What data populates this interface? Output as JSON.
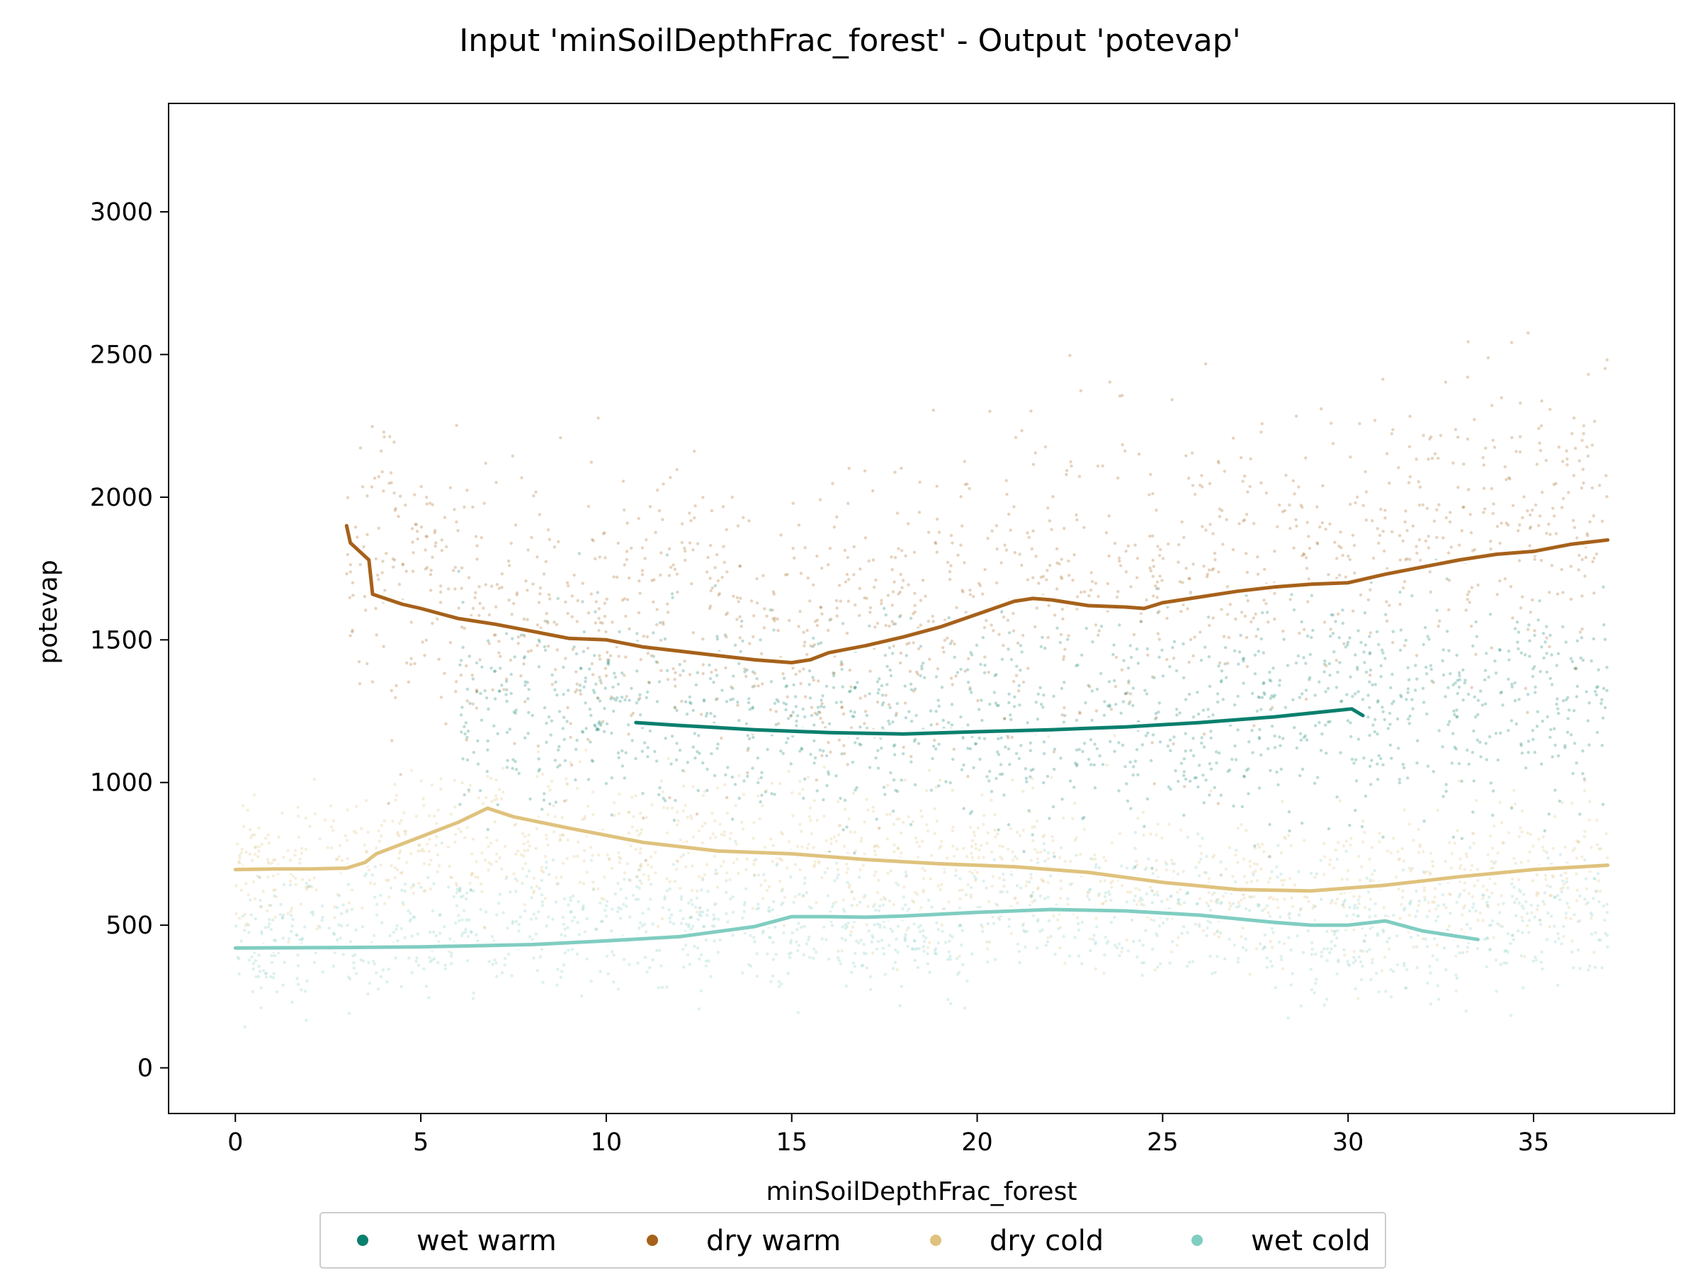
{
  "chart_data": {
    "type": "scatter",
    "title": "Input 'minSoilDepthFrac_forest' - Output 'potevap'",
    "xlabel": "minSoilDepthFrac_forest",
    "ylabel": "potevap",
    "xlim": [
      -1.8,
      38.8
    ],
    "ylim": [
      -160,
      3380
    ],
    "xticks": [
      0,
      5,
      10,
      15,
      20,
      25,
      30,
      35
    ],
    "yticks": [
      0,
      500,
      1000,
      1500,
      2000,
      2500,
      3000
    ],
    "grid": false,
    "legend_position": "bottom-center",
    "series": [
      {
        "name": "wet warm",
        "color": "#0a7f6d",
        "trend": [
          [
            10.8,
            1210
          ],
          [
            12,
            1200
          ],
          [
            14,
            1185
          ],
          [
            16,
            1175
          ],
          [
            18,
            1170
          ],
          [
            20,
            1178
          ],
          [
            22,
            1185
          ],
          [
            24,
            1195
          ],
          [
            26,
            1210
          ],
          [
            28,
            1230
          ],
          [
            29.5,
            1250
          ],
          [
            30.1,
            1258
          ],
          [
            30.4,
            1235
          ]
        ],
        "scatter_center": [
          [
            6,
            1250
          ],
          [
            10,
            1250
          ],
          [
            14,
            1200
          ],
          [
            18,
            1180
          ],
          [
            22,
            1200
          ],
          [
            26,
            1230
          ],
          [
            30,
            1280
          ],
          [
            33,
            1280
          ],
          [
            37,
            1300
          ]
        ],
        "scatter_spread": 300
      },
      {
        "name": "dry warm",
        "color": "#a6611a",
        "trend": [
          [
            3,
            1900
          ],
          [
            3.1,
            1840
          ],
          [
            3.6,
            1780
          ],
          [
            3.7,
            1660
          ],
          [
            4.5,
            1625
          ],
          [
            5,
            1610
          ],
          [
            6,
            1575
          ],
          [
            7,
            1555
          ],
          [
            8,
            1530
          ],
          [
            9,
            1505
          ],
          [
            10,
            1500
          ],
          [
            11,
            1475
          ],
          [
            12,
            1460
          ],
          [
            13,
            1445
          ],
          [
            14,
            1430
          ],
          [
            15,
            1420
          ],
          [
            15.5,
            1430
          ],
          [
            16,
            1455
          ],
          [
            17,
            1480
          ],
          [
            18,
            1510
          ],
          [
            19,
            1545
          ],
          [
            20,
            1590
          ],
          [
            21,
            1635
          ],
          [
            21.5,
            1645
          ],
          [
            22,
            1640
          ],
          [
            23,
            1620
          ],
          [
            24,
            1615
          ],
          [
            24.5,
            1610
          ],
          [
            25,
            1630
          ],
          [
            26,
            1650
          ],
          [
            27,
            1670
          ],
          [
            28,
            1685
          ],
          [
            29,
            1695
          ],
          [
            30,
            1700
          ],
          [
            31,
            1730
          ],
          [
            32,
            1755
          ],
          [
            33,
            1780
          ],
          [
            34,
            1800
          ],
          [
            35,
            1810
          ],
          [
            36,
            1835
          ],
          [
            37,
            1850
          ]
        ],
        "scatter_center": [
          [
            3,
            1850
          ],
          [
            5,
            1700
          ],
          [
            8,
            1600
          ],
          [
            11,
            1580
          ],
          [
            15,
            1520
          ],
          [
            19,
            1650
          ],
          [
            22,
            1700
          ],
          [
            26,
            1750
          ],
          [
            30,
            1850
          ],
          [
            34,
            1900
          ],
          [
            37,
            1950
          ]
        ],
        "scatter_spread": 420
      },
      {
        "name": "dry cold",
        "color": "#dfc27d",
        "trend": [
          [
            0,
            695
          ],
          [
            1,
            697
          ],
          [
            2,
            697
          ],
          [
            3,
            700
          ],
          [
            3.5,
            720
          ],
          [
            3.8,
            750
          ],
          [
            5,
            810
          ],
          [
            6,
            860
          ],
          [
            6.8,
            910
          ],
          [
            7.5,
            880
          ],
          [
            9,
            840
          ],
          [
            11,
            790
          ],
          [
            13,
            760
          ],
          [
            15,
            750
          ],
          [
            17,
            730
          ],
          [
            19,
            715
          ],
          [
            21,
            705
          ],
          [
            23,
            685
          ],
          [
            25,
            650
          ],
          [
            27,
            625
          ],
          [
            29,
            620
          ],
          [
            31,
            640
          ],
          [
            33,
            670
          ],
          [
            35,
            695
          ],
          [
            37,
            710
          ]
        ],
        "scatter_center": [
          [
            0,
            700
          ],
          [
            3,
            720
          ],
          [
            6,
            830
          ],
          [
            10,
            790
          ],
          [
            14,
            740
          ],
          [
            18,
            710
          ],
          [
            22,
            690
          ],
          [
            26,
            630
          ],
          [
            30,
            640
          ],
          [
            34,
            690
          ],
          [
            37,
            710
          ]
        ],
        "scatter_spread": 220
      },
      {
        "name": "wet cold",
        "color": "#80cdc1",
        "trend": [
          [
            0,
            420
          ],
          [
            3,
            422
          ],
          [
            5,
            424
          ],
          [
            8,
            432
          ],
          [
            10,
            445
          ],
          [
            12,
            460
          ],
          [
            14,
            495
          ],
          [
            15,
            530
          ],
          [
            16,
            530
          ],
          [
            17,
            528
          ],
          [
            18,
            532
          ],
          [
            20,
            545
          ],
          [
            22,
            555
          ],
          [
            24,
            550
          ],
          [
            26,
            535
          ],
          [
            28,
            510
          ],
          [
            29,
            500
          ],
          [
            30,
            500
          ],
          [
            31,
            515
          ],
          [
            32,
            480
          ],
          [
            33.5,
            450
          ]
        ],
        "scatter_center": [
          [
            0,
            420
          ],
          [
            5,
            480
          ],
          [
            10,
            520
          ],
          [
            15,
            480
          ],
          [
            18,
            470
          ],
          [
            22,
            560
          ],
          [
            26,
            540
          ],
          [
            30,
            460
          ],
          [
            33,
            470
          ],
          [
            37,
            550
          ]
        ],
        "scatter_spread": 180
      }
    ]
  }
}
